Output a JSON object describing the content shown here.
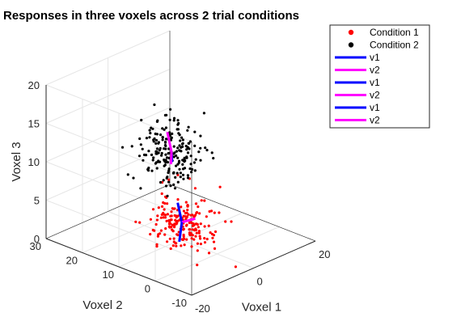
{
  "chart_data": {
    "type": "scatter3d",
    "title": "Responses in three voxels across 2 trial conditions",
    "xlabel": "Voxel 1",
    "ylabel": "Voxel 2",
    "zlabel": "Voxel 3",
    "x_ticks": [
      "-20",
      "0",
      "20"
    ],
    "y_ticks": [
      "-10",
      "0",
      "10",
      "20",
      "30"
    ],
    "z_ticks": [
      "0",
      "5",
      "10",
      "15",
      "20"
    ],
    "xlim": [
      -20,
      20
    ],
    "ylim": [
      -10,
      30
    ],
    "zlim": [
      0,
      20
    ],
    "grid": true,
    "legend_position": "top-right",
    "legend": [
      {
        "label": "Condition 1",
        "kind": "marker",
        "color": "#ff0000"
      },
      {
        "label": "Condition 2",
        "kind": "marker",
        "color": "#000000"
      },
      {
        "label": "v1",
        "kind": "line",
        "color": "#0000ff"
      },
      {
        "label": "v2",
        "kind": "line",
        "color": "#ff00ff"
      },
      {
        "label": "v1",
        "kind": "line",
        "color": "#0000ff"
      },
      {
        "label": "v2",
        "kind": "line",
        "color": "#ff00ff"
      },
      {
        "label": "v1",
        "kind": "line",
        "color": "#0000ff"
      },
      {
        "label": "v2",
        "kind": "line",
        "color": "#ff00ff"
      }
    ],
    "series": [
      {
        "name": "Condition 1",
        "color": "#ff0000",
        "count": 200,
        "mean": [
          -2,
          8,
          3
        ],
        "std": [
          3.5,
          3.5,
          1.8
        ]
      },
      {
        "name": "Condition 2",
        "color": "#000000",
        "count": 200,
        "mean": [
          -3,
          10,
          12
        ],
        "std": [
          3.5,
          3.5,
          2.2
        ]
      }
    ],
    "vectors": [
      {
        "name": "v1",
        "color": "#0000ff",
        "from": [
          -2,
          8,
          3
        ],
        "to": [
          -1,
          10,
          5
        ]
      },
      {
        "name": "v2",
        "color": "#ff00ff",
        "from": [
          -2,
          8,
          3
        ],
        "to": [
          0,
          6,
          3.5
        ]
      },
      {
        "name": "v1",
        "color": "#0000ff",
        "from": [
          -2,
          8,
          3
        ],
        "to": [
          -4,
          7,
          1
        ]
      },
      {
        "name": "v2",
        "color": "#ff00ff",
        "from": [
          -3,
          10,
          12
        ],
        "to": [
          -2,
          12,
          14
        ]
      },
      {
        "name": "v1",
        "color": "#0000ff",
        "from": [
          -3,
          10,
          12
        ],
        "to": [
          -4,
          9,
          11
        ]
      },
      {
        "name": "v2",
        "color": "#ff00ff",
        "from": [
          -3,
          10,
          12
        ],
        "to": [
          -2,
          11,
          10
        ]
      }
    ]
  }
}
